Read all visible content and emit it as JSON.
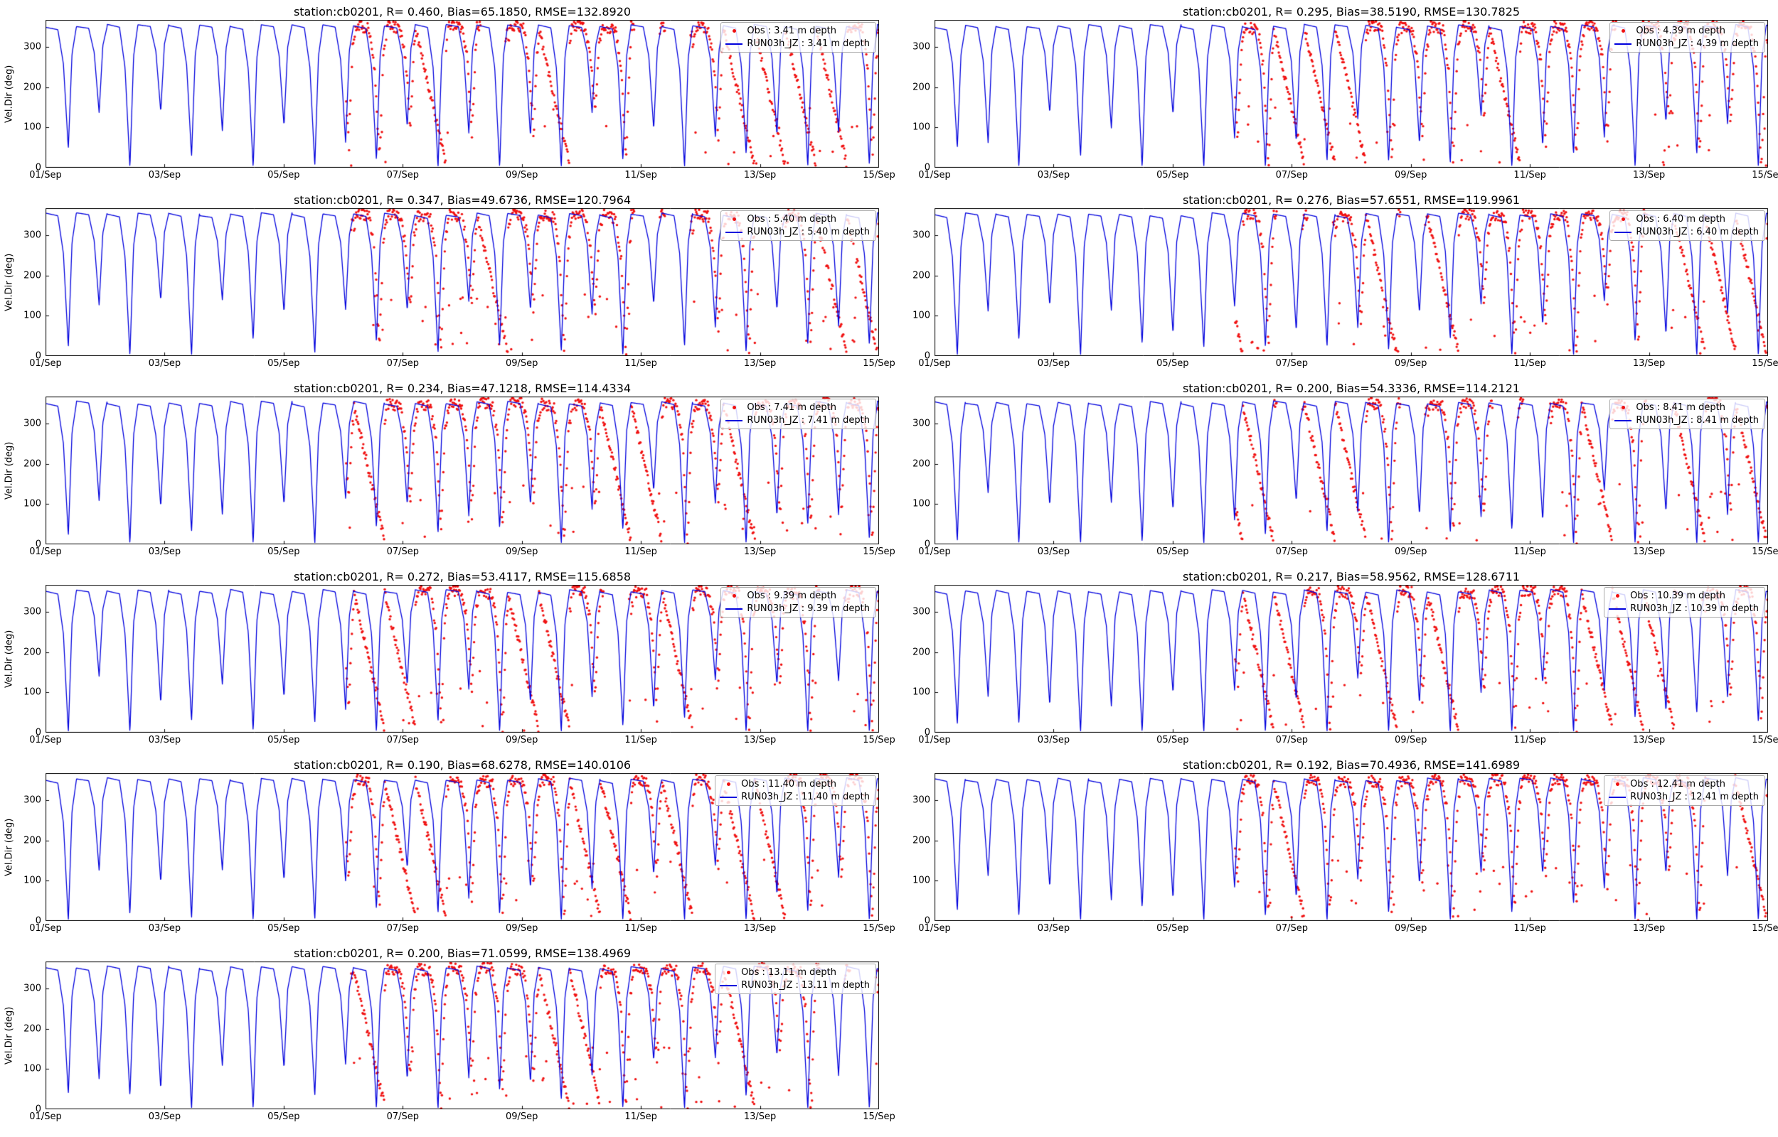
{
  "figure": {
    "background": "#ffffff"
  },
  "chart_data": {
    "type": "line",
    "description": "Time series of current velocity direction: red Obs scatter vs blue model line RUN03h_JZ at 11 depths, station cb0201, 01-15 Sep",
    "layout": {
      "rows": 6,
      "cols": 2,
      "filled_cells": 11,
      "legend_position": "upper right",
      "grid": false
    },
    "x_axis": {
      "tick_labels": [
        "01/Sep",
        "03/Sep",
        "05/Sep",
        "07/Sep",
        "09/Sep",
        "11/Sep",
        "13/Sep",
        "15/Sep"
      ],
      "range_days": [
        0,
        14
      ],
      "tick_interval_days": 2
    },
    "y_axis": {
      "label": "Vel.Dir (deg)",
      "ticks": [
        0,
        100,
        200,
        300
      ],
      "ylim": [
        0,
        368
      ]
    },
    "colors": {
      "obs": "#f01010",
      "model": "#0000dd",
      "axis": "#000000",
      "legend_border": "#a9a9a9"
    },
    "series_template": [
      {
        "name": "Obs",
        "type": "scatter",
        "color_key": "obs",
        "marker": "dot"
      },
      {
        "name": "RUN03h_JZ",
        "type": "line",
        "color_key": "model"
      }
    ],
    "model_signal": {
      "period_days": 0.5175,
      "plateau_deg": 353,
      "dip_descent_keypoints": [
        [
          0,
          0
        ],
        [
          0.4,
          0.02
        ],
        [
          0.58,
          0.3
        ],
        [
          0.74,
          1.0
        ],
        [
          0.86,
          0.22
        ],
        [
          1,
          0
        ]
      ],
      "dip_min_even": 4,
      "dip_min_odd": 95,
      "dip_min_jitter": 45,
      "plateau_noise_deg": 4,
      "sample_step_days": 0.006
    },
    "obs_signal": {
      "start_day": 5.05,
      "end_day": 14,
      "sample_step_days": 0.012,
      "track_noise_deg": 14,
      "lag_days": 0.05,
      "sweep_top_deg": 350,
      "sweep_bottom_deg": 10,
      "outlier_prob": 0.05,
      "mode_probs": {
        "gap": 0.12,
        "sweep": 0.3,
        "track": 0.58
      }
    },
    "subplots": [
      {
        "station": "cb0201",
        "R": "0.460",
        "Bias": "65.1850",
        "RMSE": "132.8920",
        "depth": "3.41",
        "title": "station:cb0201, R= 0.460, Bias=65.1850, RMSE=132.8920",
        "legend_obs": "Obs : 3.41 m depth",
        "legend_model": "RUN03h_JZ : 3.41 m depth",
        "seed": 11
      },
      {
        "station": "cb0201",
        "R": "0.295",
        "Bias": "38.5190",
        "RMSE": "130.7825",
        "depth": "4.39",
        "title": "station:cb0201, R= 0.295, Bias=38.5190, RMSE=130.7825",
        "legend_obs": "Obs : 4.39 m depth",
        "legend_model": "RUN03h_JZ : 4.39 m depth",
        "seed": 22
      },
      {
        "station": "cb0201",
        "R": "0.347",
        "Bias": "49.6736",
        "RMSE": "120.7964",
        "depth": "5.40",
        "title": "station:cb0201, R= 0.347, Bias=49.6736, RMSE=120.7964",
        "legend_obs": "Obs : 5.40 m depth",
        "legend_model": "RUN03h_JZ : 5.40 m depth",
        "seed": 33
      },
      {
        "station": "cb0201",
        "R": "0.276",
        "Bias": "57.6551",
        "RMSE": "119.9961",
        "depth": "6.40",
        "title": "station:cb0201, R= 0.276, Bias=57.6551, RMSE=119.9961",
        "legend_obs": "Obs : 6.40 m depth",
        "legend_model": "RUN03h_JZ : 6.40 m depth",
        "seed": 44
      },
      {
        "station": "cb0201",
        "R": "0.234",
        "Bias": "47.1218",
        "RMSE": "114.4334",
        "depth": "7.41",
        "title": "station:cb0201, R= 0.234, Bias=47.1218, RMSE=114.4334",
        "legend_obs": "Obs : 7.41 m depth",
        "legend_model": "RUN03h_JZ : 7.41 m depth",
        "seed": 55
      },
      {
        "station": "cb0201",
        "R": "0.200",
        "Bias": "54.3336",
        "RMSE": "114.2121",
        "depth": "8.41",
        "title": "station:cb0201, R= 0.200, Bias=54.3336, RMSE=114.2121",
        "legend_obs": "Obs : 8.41 m depth",
        "legend_model": "RUN03h_JZ : 8.41 m depth",
        "seed": 66
      },
      {
        "station": "cb0201",
        "R": "0.272",
        "Bias": "53.4117",
        "RMSE": "115.6858",
        "depth": "9.39",
        "title": "station:cb0201, R= 0.272, Bias=53.4117, RMSE=115.6858",
        "legend_obs": "Obs : 9.39 m depth",
        "legend_model": "RUN03h_JZ : 9.39 m depth",
        "seed": 77
      },
      {
        "station": "cb0201",
        "R": "0.217",
        "Bias": "58.9562",
        "RMSE": "128.6711",
        "depth": "10.39",
        "title": "station:cb0201, R= 0.217, Bias=58.9562, RMSE=128.6711",
        "legend_obs": "Obs : 10.39 m depth",
        "legend_model": "RUN03h_JZ : 10.39 m depth",
        "seed": 88
      },
      {
        "station": "cb0201",
        "R": "0.190",
        "Bias": "68.6278",
        "RMSE": "140.0106",
        "depth": "11.40",
        "title": "station:cb0201, R= 0.190, Bias=68.6278, RMSE=140.0106",
        "legend_obs": "Obs : 11.40 m depth",
        "legend_model": "RUN03h_JZ : 11.40 m depth",
        "seed": 99
      },
      {
        "station": "cb0201",
        "R": "0.192",
        "Bias": "70.4936",
        "RMSE": "141.6989",
        "depth": "12.41",
        "title": "station:cb0201, R= 0.192, Bias=70.4936, RMSE=141.6989",
        "legend_obs": "Obs : 12.41 m depth",
        "legend_model": "RUN03h_JZ : 12.41 m depth",
        "seed": 110
      },
      {
        "station": "cb0201",
        "R": "0.200",
        "Bias": "71.0599",
        "RMSE": "138.4969",
        "depth": "13.11",
        "title": "station:cb0201, R= 0.200, Bias=71.0599, RMSE=138.4969",
        "legend_obs": "Obs : 13.11 m depth",
        "legend_model": "RUN03h_JZ : 13.11 m depth",
        "seed": 121
      }
    ]
  }
}
